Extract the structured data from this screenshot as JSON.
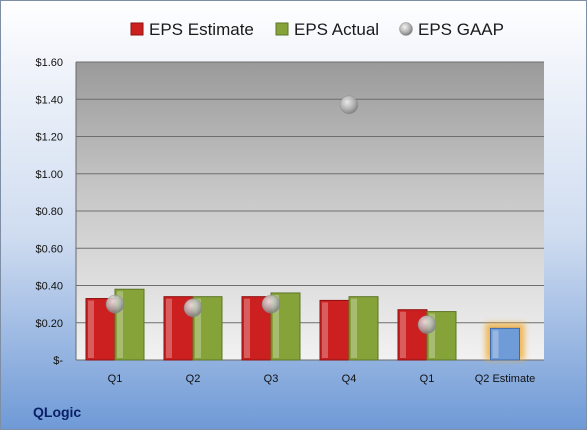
{
  "company": "QLogic",
  "chart_data": {
    "type": "bar",
    "categories": [
      "Q1",
      "Q2",
      "Q3",
      "Q4",
      "Q1",
      "Q2 Estimate"
    ],
    "series": [
      {
        "name": "EPS Estimate",
        "color": "#cc1f1f",
        "values": [
          0.33,
          0.34,
          0.34,
          0.32,
          0.27,
          null
        ]
      },
      {
        "name": "EPS Actual",
        "color": "#86a33a",
        "values": [
          0.38,
          0.34,
          0.36,
          0.34,
          0.26,
          null
        ]
      },
      {
        "name": "EPS GAAP",
        "type": "scatter",
        "color": "#b0b0b0",
        "values": [
          0.3,
          0.28,
          0.3,
          1.37,
          0.19,
          null
        ]
      },
      {
        "name": "",
        "color": "#6f9bd6",
        "highlight": "#f5a623",
        "values": [
          null,
          null,
          null,
          null,
          null,
          0.17
        ]
      }
    ],
    "yticks": [
      "$-",
      "$0.20",
      "$0.40",
      "$0.60",
      "$0.80",
      "$1.00",
      "$1.20",
      "$1.40",
      "$1.60"
    ],
    "ylim": [
      0,
      1.6
    ],
    "legend_position": "top",
    "grid": true
  }
}
